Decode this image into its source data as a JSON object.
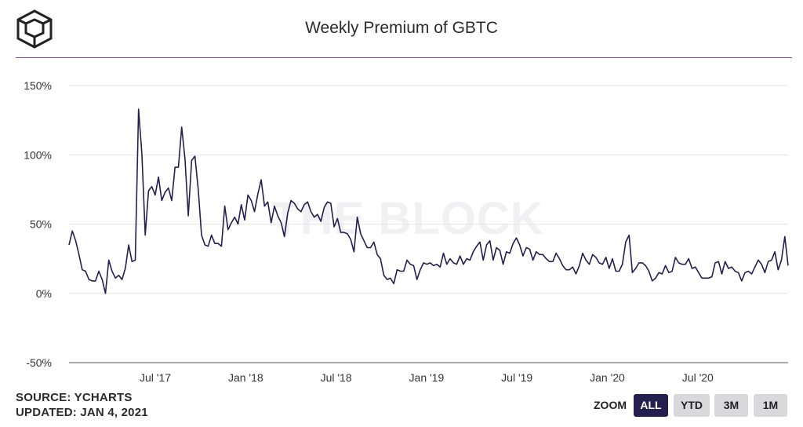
{
  "header": {
    "title": "Weekly Premium of GBTC"
  },
  "watermark": "THE BLOCK",
  "footer": {
    "source": "SOURCE: YCHARTS",
    "updated": "UPDATED: JAN 4, 2021"
  },
  "zoom": {
    "label": "ZOOM",
    "buttons": [
      "ALL",
      "YTD",
      "3M",
      "1M"
    ],
    "active": "ALL"
  },
  "colors": {
    "line": "#241f4f",
    "rule": "#8e3fbf",
    "grid": "#e6e6e6",
    "active_button": "#241f4f",
    "button": "#d9d9dc"
  },
  "chart_data": {
    "type": "line",
    "title": "Weekly Premium of GBTC",
    "xlabel": "",
    "ylabel": "",
    "ylim": [
      -50,
      150
    ],
    "y_ticks": [
      "150%",
      "100%",
      "50%",
      "0%",
      "-50%"
    ],
    "x_ticks": [
      "Jul '17",
      "Jan '18",
      "Jul '18",
      "Jan '19",
      "Jul '19",
      "Jan '20",
      "Jul '20"
    ],
    "grid": true,
    "legend": "none",
    "series": [
      {
        "values": [
          35,
          45,
          38,
          28,
          17,
          16,
          10,
          9,
          9,
          16,
          10,
          0,
          24,
          16,
          11,
          13,
          10,
          18,
          35,
          23,
          24,
          133,
          100,
          42,
          74,
          77,
          71,
          84,
          67,
          73,
          76,
          67,
          91,
          91,
          120,
          97,
          56,
          96,
          99,
          75,
          42,
          35,
          34,
          42,
          36,
          36,
          34,
          63,
          46,
          51,
          55,
          50,
          64,
          53,
          71,
          67,
          59,
          72,
          82,
          63,
          66,
          51,
          63,
          56,
          51,
          41,
          58,
          67,
          65,
          61,
          59,
          64,
          66,
          59,
          55,
          57,
          52,
          62,
          66,
          65,
          48,
          54,
          44,
          44,
          43,
          39,
          30,
          55,
          43,
          38,
          33,
          33,
          37,
          28,
          25,
          13,
          10,
          11,
          7,
          17,
          16,
          16,
          24,
          21,
          20,
          10,
          17,
          22,
          21,
          22,
          20,
          21,
          19,
          29,
          21,
          25,
          22,
          21,
          27,
          21,
          25,
          24,
          30,
          34,
          37,
          24,
          35,
          38,
          24,
          33,
          31,
          21,
          30,
          29,
          36,
          40,
          35,
          27,
          33,
          32,
          24,
          30,
          28,
          28,
          25,
          23,
          23,
          29,
          25,
          20,
          17,
          17,
          19,
          14,
          20,
          29,
          24,
          21,
          28,
          26,
          22,
          21,
          26,
          18,
          25,
          16,
          16,
          21,
          37,
          42,
          15,
          18,
          22,
          22,
          20,
          16,
          9,
          11,
          15,
          14,
          20,
          15,
          16,
          26,
          22,
          21,
          21,
          25,
          18,
          19,
          15,
          11,
          11,
          11,
          12,
          22,
          23,
          14,
          23,
          18,
          19,
          16,
          15,
          9,
          15,
          16,
          14,
          19,
          24,
          21,
          15,
          23,
          24,
          30,
          17,
          24,
          41,
          20
        ]
      }
    ]
  }
}
